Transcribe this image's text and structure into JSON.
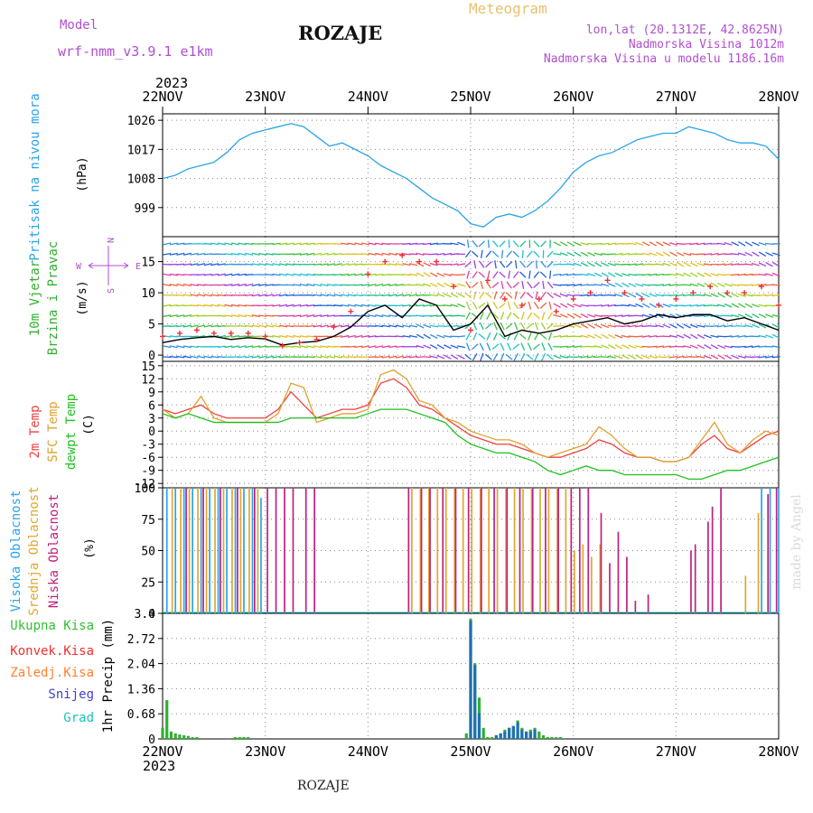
{
  "header": {
    "model_label": "Model",
    "model_name": "wrf-nmm_v3.9.1 e1km",
    "title": "ROZAJE",
    "meteogram": "Meteogram",
    "coords": "lon,lat (20.1312E, 42.8625N)",
    "altitude": "Nadmorska Visina 1012m",
    "model_altitude": "Nadmorska Visina u modelu 1186.16m",
    "credit": "made by Angel",
    "footer_name": "ROZAJE",
    "colors": {
      "purple": "#b04fd0",
      "gold": "#e0b050"
    }
  },
  "time_axis": {
    "year": "2023",
    "day_labels": [
      "22NOV",
      "23NOV",
      "24NOV",
      "25NOV",
      "26NOV",
      "27NOV",
      "28NOV"
    ],
    "x_range_hours": [
      0,
      144
    ]
  },
  "chart_data": [
    {
      "id": "pressure",
      "type": "line",
      "ylabel_name": "Pritisak na nivou mora",
      "ylabel_unit": "(hPa)",
      "yticks": [
        "999",
        "1008",
        "1017",
        "1026"
      ],
      "ylim": [
        990,
        1028
      ],
      "grid": true,
      "color": "#2aa4e8",
      "series": [
        {
          "x": [
            0,
            3,
            6,
            9,
            12,
            15,
            18,
            21,
            24,
            27,
            30,
            33,
            36,
            39,
            42,
            45,
            48,
            51,
            54,
            57,
            60,
            63,
            66,
            69,
            72,
            75,
            78,
            81,
            84,
            87,
            90,
            93,
            96,
            99,
            102,
            105,
            108,
            111,
            114,
            117,
            120,
            123,
            126,
            129,
            132,
            135,
            138,
            141,
            144
          ],
          "values": [
            1008,
            1009,
            1011,
            1012,
            1013,
            1016,
            1020,
            1022,
            1023,
            1024,
            1025,
            1024,
            1021,
            1018,
            1019,
            1017,
            1015,
            1012,
            1010,
            1008,
            1005,
            1002,
            1000,
            998,
            994,
            993,
            996,
            997,
            996,
            998,
            1001,
            1005,
            1010,
            1013,
            1015,
            1016,
            1018,
            1020,
            1021,
            1022,
            1022,
            1024,
            1023,
            1022,
            1020,
            1019,
            1019,
            1018,
            1014
          ]
        }
      ]
    },
    {
      "id": "wind",
      "type": "line",
      "ylabel_name": "10m Vjetar",
      "ylabel_name2": "Brzina i Pravac",
      "ylabel_unit": "(m/s)",
      "yticks": [
        "0",
        "5",
        "10",
        "15"
      ],
      "ylim": [
        -1,
        19
      ],
      "grid": true,
      "compass": {
        "n": "N",
        "s": "S",
        "e": "E",
        "w": "W"
      },
      "series": [
        {
          "id": "speed",
          "color": "#000000",
          "x": [
            0,
            4,
            8,
            12,
            16,
            20,
            24,
            28,
            32,
            36,
            40,
            44,
            48,
            52,
            56,
            60,
            64,
            68,
            72,
            76,
            80,
            84,
            88,
            92,
            96,
            100,
            104,
            108,
            112,
            116,
            120,
            124,
            128,
            132,
            136,
            140,
            144
          ],
          "values": [
            2,
            2.5,
            2.8,
            3,
            2.5,
            2.8,
            2.6,
            1.6,
            2,
            2.2,
            3,
            4.5,
            7,
            8,
            6,
            9,
            8,
            4,
            5,
            8,
            3,
            4,
            3.5,
            4,
            5,
            5.5,
            6,
            5,
            5.5,
            6.5,
            6,
            6.5,
            6.5,
            5.5,
            6,
            5,
            4
          ]
        },
        {
          "id": "gust",
          "color": "#ee3030",
          "x": [
            0,
            4,
            8,
            12,
            16,
            20,
            24,
            28,
            32,
            36,
            40,
            44,
            48,
            52,
            56,
            60,
            64,
            68,
            72,
            76,
            80,
            84,
            88,
            92,
            96,
            100,
            104,
            108,
            112,
            116,
            120,
            124,
            128,
            132,
            136,
            140,
            144
          ],
          "values": [
            3,
            3.5,
            4,
            3.5,
            3.5,
            3.5,
            3,
            1.5,
            2,
            2.5,
            4.5,
            7,
            13,
            15,
            16,
            15,
            15,
            11,
            4,
            12,
            9,
            8,
            9,
            7,
            9,
            10,
            12,
            10,
            9,
            8,
            9,
            10,
            11,
            10,
            10,
            11,
            8
          ]
        }
      ]
    },
    {
      "id": "temperature",
      "type": "line",
      "ylabel_t2m": "2m Temp",
      "ylabel_sfc": "SFC Temp",
      "ylabel_dew": "dewpt Temp",
      "ylabel_unit": "(C)",
      "yticks": [
        "-12",
        "-9",
        "-6",
        "-3",
        "0",
        "3",
        "6",
        "9",
        "12",
        "15"
      ],
      "ylim": [
        -13,
        16
      ],
      "grid": true,
      "series": [
        {
          "id": "t2m",
          "color": "#ee4040",
          "x": [
            0,
            3,
            6,
            9,
            12,
            15,
            18,
            21,
            24,
            27,
            30,
            33,
            36,
            39,
            42,
            45,
            48,
            51,
            54,
            57,
            60,
            63,
            66,
            69,
            72,
            75,
            78,
            81,
            84,
            87,
            90,
            93,
            96,
            99,
            102,
            105,
            108,
            111,
            114,
            117,
            120,
            123,
            126,
            129,
            132,
            135,
            138,
            141,
            144
          ],
          "values": [
            5,
            4,
            5,
            6,
            4,
            3,
            3,
            3,
            3,
            5,
            9,
            6,
            3,
            4,
            5,
            5,
            6,
            11,
            12,
            10,
            6,
            5,
            3,
            1,
            -1,
            -2,
            -3,
            -3,
            -4,
            -5,
            -6,
            -6,
            -5,
            -4,
            -2,
            -3,
            -5,
            -6,
            -6,
            -7,
            -7,
            -6,
            -3,
            -1,
            -4,
            -5,
            -3,
            -1,
            0
          ]
        },
        {
          "id": "sfc",
          "color": "#e0a030",
          "x": [
            0,
            3,
            6,
            9,
            12,
            15,
            18,
            21,
            24,
            27,
            30,
            33,
            36,
            39,
            42,
            45,
            48,
            51,
            54,
            57,
            60,
            63,
            66,
            69,
            72,
            75,
            78,
            81,
            84,
            87,
            90,
            93,
            96,
            99,
            102,
            105,
            108,
            111,
            114,
            117,
            120,
            123,
            126,
            129,
            132,
            135,
            138,
            141,
            144
          ],
          "values": [
            5,
            3,
            4,
            8,
            3,
            2,
            2,
            2,
            2,
            4,
            11,
            10,
            2,
            3,
            4,
            4,
            5,
            13,
            14,
            12,
            7,
            6,
            3,
            2,
            0,
            -1,
            -2,
            -2,
            -3,
            -5,
            -6,
            -5,
            -4,
            -3,
            1,
            -1,
            -4,
            -6,
            -6,
            -7,
            -7,
            -6,
            -2,
            2,
            -3,
            -5,
            -2,
            0,
            -1
          ]
        },
        {
          "id": "dewpt",
          "color": "#20c020",
          "x": [
            0,
            3,
            6,
            9,
            12,
            15,
            18,
            21,
            24,
            27,
            30,
            33,
            36,
            39,
            42,
            45,
            48,
            51,
            54,
            57,
            60,
            63,
            66,
            69,
            72,
            75,
            78,
            81,
            84,
            87,
            90,
            93,
            96,
            99,
            102,
            105,
            108,
            111,
            114,
            117,
            120,
            123,
            126,
            129,
            132,
            135,
            138,
            141,
            144
          ],
          "values": [
            4,
            3,
            4,
            3,
            2,
            2,
            2,
            2,
            2,
            2,
            3,
            3,
            3,
            3,
            3,
            3,
            4,
            5,
            5,
            5,
            4,
            3,
            2,
            -1,
            -3,
            -4,
            -5,
            -5,
            -6,
            -7,
            -9,
            -10,
            -9,
            -8,
            -9,
            -9,
            -10,
            -10,
            -10,
            -10,
            -10,
            -11,
            -11,
            -10,
            -9,
            -9,
            -8,
            -7,
            -6
          ]
        }
      ]
    },
    {
      "id": "clouds",
      "type": "bar",
      "ylabel_high": "Visoka Oblacnost",
      "ylabel_mid": "Srednja Oblacnost",
      "ylabel_low": "Niska Oblacnost",
      "ylabel_unit": "(%)",
      "yticks": [
        "0",
        "25",
        "50",
        "75",
        "100"
      ],
      "ylim": [
        0,
        100
      ],
      "grid": true,
      "series": [
        {
          "id": "high",
          "color": "#2aa4e8",
          "x": [
            1,
            3,
            5,
            7,
            9,
            11,
            13,
            15,
            17,
            19,
            21,
            23,
            26,
            120,
            122,
            124,
            126,
            128,
            132,
            138,
            140,
            142,
            144
          ],
          "values": [
            100,
            100,
            100,
            100,
            100,
            100,
            100,
            100,
            100,
            100,
            100,
            92,
            0,
            0,
            0,
            0,
            0,
            0,
            0,
            0,
            100,
            100,
            100
          ]
        },
        {
          "id": "mid",
          "color": "#e0a830",
          "x": [
            2,
            4,
            6,
            8,
            10,
            12,
            14,
            16,
            18,
            20,
            22,
            56,
            58,
            60,
            62,
            64,
            66,
            68,
            70,
            72,
            74,
            76,
            78,
            80,
            82,
            84,
            86,
            88,
            90,
            92,
            94,
            96,
            98,
            100,
            102,
            136,
            139
          ],
          "values": [
            100,
            100,
            100,
            100,
            100,
            100,
            100,
            100,
            100,
            100,
            100,
            0,
            100,
            100,
            100,
            100,
            100,
            100,
            100,
            100,
            100,
            100,
            100,
            100,
            100,
            100,
            100,
            100,
            100,
            100,
            100,
            50,
            55,
            45,
            55,
            30,
            80
          ]
        },
        {
          "id": "low",
          "color": "#c02080",
          "x": [
            5,
            9,
            13,
            17,
            21,
            24,
            26,
            28,
            30,
            33,
            35,
            57,
            60,
            62,
            65,
            68,
            71,
            74,
            77,
            80,
            83,
            86,
            89,
            92,
            95,
            97,
            99,
            102,
            104,
            106,
            108,
            110,
            113,
            123,
            124,
            127,
            128,
            130,
            141,
            143
          ],
          "values": [
            100,
            100,
            100,
            100,
            100,
            100,
            100,
            100,
            100,
            100,
            100,
            100,
            100,
            100,
            100,
            100,
            100,
            100,
            100,
            100,
            100,
            100,
            100,
            100,
            100,
            100,
            100,
            80,
            40,
            65,
            45,
            10,
            15,
            50,
            55,
            73,
            85,
            100,
            95,
            100
          ]
        }
      ]
    },
    {
      "id": "precip",
      "type": "bar",
      "ylabel_unit": "1hr Precip (mm)",
      "legend": [
        "Ukupna Kisa",
        "Konvek.Kisa",
        "Zaledj.Kisa",
        "Snijeg",
        "Grad"
      ],
      "legend_colors": [
        "#30c030",
        "#ee3030",
        "#ff8030",
        "#4040d0",
        "#20c0c0"
      ],
      "yticks": [
        "0",
        "0.68",
        "1.36",
        "2.04",
        "2.72",
        "3.4"
      ],
      "ylim": [
        0,
        3.4
      ],
      "grid": true,
      "series": [
        {
          "id": "total",
          "color": "#30b030",
          "x": [
            0,
            1,
            2,
            3,
            4,
            5,
            6,
            7,
            8,
            17,
            18,
            19,
            20,
            71,
            72,
            73,
            74,
            75,
            76,
            77,
            78,
            79,
            80,
            81,
            82,
            83,
            84,
            85,
            86,
            87,
            88,
            89,
            90,
            91,
            92,
            93
          ],
          "values": [
            0.3,
            1.05,
            0.2,
            0.15,
            0.12,
            0.1,
            0.08,
            0.05,
            0.05,
            0.05,
            0.05,
            0.05,
            0.05,
            0.15,
            3.25,
            2.05,
            1.12,
            0.3,
            0.05,
            0.05,
            0.1,
            0.15,
            0.25,
            0.3,
            0.35,
            0.5,
            0.3,
            0.2,
            0.25,
            0.3,
            0.2,
            0.1,
            0.05,
            0.05,
            0.05,
            0.05
          ]
        },
        {
          "id": "snow",
          "color": "#2070b0",
          "x": [
            72,
            73,
            74,
            78,
            79,
            80,
            81,
            82,
            83,
            84,
            85,
            86,
            87
          ],
          "values": [
            3.2,
            2.0,
            0.7,
            0.1,
            0.15,
            0.2,
            0.3,
            0.35,
            0.45,
            0.25,
            0.2,
            0.2,
            0.25
          ]
        }
      ]
    }
  ]
}
